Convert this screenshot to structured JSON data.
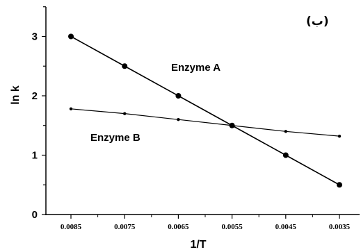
{
  "chart_data": {
    "type": "line",
    "panel_label": "(ب)",
    "xlabel": "1/T",
    "ylabel": "ln k",
    "x_tick_labels": [
      "0.0085",
      "0.0075",
      "0.0065",
      "0.0055",
      "0.0045",
      "0.0035"
    ],
    "y_tick_labels": [
      "0",
      "1",
      "2",
      "3"
    ],
    "ylim": [
      0,
      3.5
    ],
    "grid": false,
    "series": [
      {
        "name": "Enzyme A",
        "x": [
          0.0085,
          0.0075,
          0.0065,
          0.0055,
          0.0045,
          0.0035
        ],
        "values": [
          3.0,
          2.5,
          2.0,
          1.5,
          1.0,
          0.5
        ]
      },
      {
        "name": "Enzyme B",
        "x": [
          0.0085,
          0.0075,
          0.0065,
          0.0055,
          0.0045,
          0.0035
        ],
        "values": [
          1.78,
          1.7,
          1.6,
          1.5,
          1.4,
          1.32
        ]
      }
    ]
  }
}
